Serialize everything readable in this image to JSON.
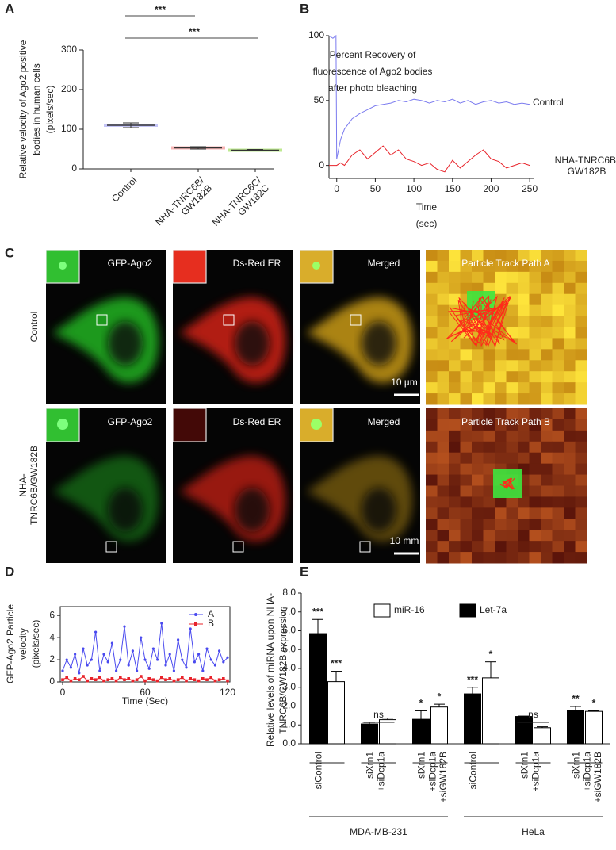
{
  "panels": {
    "a": "A",
    "b": "B",
    "c": "C",
    "d": "D",
    "e": "E"
  },
  "panel_c": {
    "columns": [
      "GFP-Ago2",
      "Ds-Red ER",
      "Merged"
    ],
    "tracks": [
      "Particle Track Path A",
      "Particle Track Path B"
    ],
    "rows": [
      "Control",
      "NHA-TNRC6B/GW182B"
    ],
    "scale_bars": [
      "10 µm",
      "10 mm"
    ]
  },
  "chart_data": [
    {
      "type": "strip",
      "categories": [
        "Control",
        "NHA-TNRC6B/GW182B",
        "NHA-TNRC6C/GW182C"
      ],
      "colors": [
        "#8c8cf0",
        "#f06a6a",
        "#7ed321"
      ],
      "values": [
        110,
        53,
        47
      ],
      "errors": [
        6,
        3,
        2
      ],
      "ylim": [
        0,
        300
      ],
      "yticks": [
        0,
        100,
        200,
        300
      ],
      "ylabel": [
        "Relative velocity of Ago2 positive",
        "bodies in human cells",
        "(pixels/sec)"
      ],
      "annotations": [
        "***",
        "***"
      ]
    },
    {
      "type": "line",
      "x": [
        -10,
        -5,
        -1,
        0,
        5,
        10,
        20,
        30,
        40,
        50,
        60,
        70,
        80,
        90,
        100,
        110,
        120,
        130,
        140,
        150,
        160,
        170,
        180,
        190,
        200,
        210,
        220,
        230,
        240,
        250
      ],
      "series": [
        {
          "name": "Control",
          "color": "#7b7bef",
          "values": [
            100,
            98,
            100,
            5,
            20,
            28,
            36,
            40,
            43,
            46,
            47,
            48,
            50,
            49,
            51,
            50,
            48,
            50,
            49,
            51,
            48,
            50,
            47,
            49,
            50,
            48,
            49,
            47,
            48,
            47
          ]
        },
        {
          "name": "NHA-TNRC6B/GW182B",
          "color": "#e8232a",
          "values": [
            0,
            0,
            0,
            0,
            2,
            0,
            8,
            12,
            5,
            10,
            15,
            8,
            12,
            5,
            3,
            0,
            2,
            -3,
            -5,
            4,
            -2,
            3,
            8,
            12,
            5,
            3,
            -2,
            0,
            2,
            0
          ]
        }
      ],
      "xlim": [
        -10,
        255
      ],
      "ylim": [
        -10,
        100
      ],
      "xticks": [
        0,
        50,
        100,
        150,
        200,
        250
      ],
      "yticks": [
        0,
        50,
        100
      ],
      "ylabel": [
        "Percent Recovery of",
        "fluorescence of Ago2 bodies",
        "after photo bleaching"
      ],
      "xlabel": [
        "Time",
        "(sec)"
      ]
    },
    {
      "type": "line-marker",
      "x": [
        0,
        3,
        6,
        9,
        12,
        15,
        18,
        21,
        24,
        27,
        30,
        33,
        36,
        39,
        42,
        45,
        48,
        51,
        54,
        57,
        60,
        63,
        66,
        69,
        72,
        75,
        78,
        81,
        84,
        87,
        90,
        93,
        96,
        99,
        102,
        105,
        108,
        111,
        114,
        117,
        120
      ],
      "series": [
        {
          "name": "A",
          "color": "#4a4aef",
          "marker": "circle",
          "values": [
            1,
            2,
            1.3,
            2.5,
            0.8,
            3,
            1.5,
            2,
            4.5,
            1,
            2.5,
            1.8,
            3.5,
            1,
            2,
            5,
            1.5,
            2.8,
            1,
            4,
            2,
            1.2,
            3,
            2,
            5.3,
            1.5,
            2.5,
            1,
            3.8,
            2,
            1.3,
            4.8,
            1.8,
            2.5,
            1,
            3,
            2,
            1.5,
            2.8,
            1.8,
            2.2
          ]
        },
        {
          "name": "B",
          "color": "#e8232a",
          "marker": "square",
          "values": [
            0.2,
            0.4,
            0.1,
            0.3,
            0.2,
            0.5,
            0.1,
            0.3,
            0.2,
            0.4,
            0.1,
            0.2,
            0.3,
            0.1,
            0.4,
            0.2,
            0.3,
            0.1,
            0.2,
            0.5,
            0.1,
            0.3,
            0.2,
            0.1,
            0.4,
            0.2,
            0.3,
            0.1,
            0.2,
            0.4,
            0.1,
            0.3,
            0.2,
            0.1,
            0.3,
            0.2,
            0.4,
            0.1,
            0.2,
            0.3,
            0.1
          ]
        }
      ],
      "xlim": [
        0,
        120
      ],
      "ylim": [
        0,
        6.8
      ],
      "xticks": [
        0,
        60,
        120
      ],
      "yticks": [
        0,
        2,
        4,
        6
      ],
      "ylabel": [
        "GFP-Ago2 Particle",
        "velocity",
        "(pixels/sec)"
      ],
      "xlabel": "Time (Sec)"
    },
    {
      "type": "grouped-bar",
      "categories": [
        "siControl",
        "siXrn1 +siDcp1a",
        "siXrn1 +siDcp1a +siGW182B",
        "siControl",
        "siXrn1 +siDcp1a",
        "siXrn1 +siDcp1a +siGW182B"
      ],
      "series": [
        {
          "name": "Let-7a",
          "color": "#000000",
          "values": [
            5.85,
            1.05,
            1.3,
            2.65,
            1.45,
            1.78
          ],
          "errors": [
            0.75,
            0.08,
            0.45,
            0.35,
            0.02,
            0.2
          ],
          "significance": [
            "***",
            null,
            "*",
            "***",
            null,
            "**"
          ]
        },
        {
          "name": "miR-16",
          "color": "#ffffff",
          "values": [
            3.3,
            1.28,
            1.95,
            3.5,
            0.85,
            1.72
          ],
          "errors": [
            0.55,
            0.08,
            0.15,
            0.85,
            0.05,
            0.03
          ],
          "significance": [
            "***",
            null,
            "*",
            "*",
            null,
            "*"
          ]
        }
      ],
      "annotations": [
        "ns",
        "ns"
      ],
      "group_labels": [
        "MDA-MB-231",
        "HeLa"
      ],
      "ylim": [
        0,
        8
      ],
      "yticks": [
        {
          "value": 0,
          "label": "0.0"
        },
        {
          "value": 1,
          "label": "1.0"
        },
        {
          "value": 2,
          "label": "2.0"
        },
        {
          "value": 3,
          "label": "3.0"
        },
        {
          "value": 4,
          "label": "4.0"
        },
        {
          "value": 5,
          "label": "5.0"
        },
        {
          "value": 6,
          "label": "6.0"
        },
        {
          "value": 7,
          "label": "7.0"
        },
        {
          "value": 8,
          "label": "8.0"
        }
      ],
      "ylabel": [
        "Relative levels of miRNA upon NHA-",
        "TNRC6B/GW182B expression"
      ]
    }
  ]
}
